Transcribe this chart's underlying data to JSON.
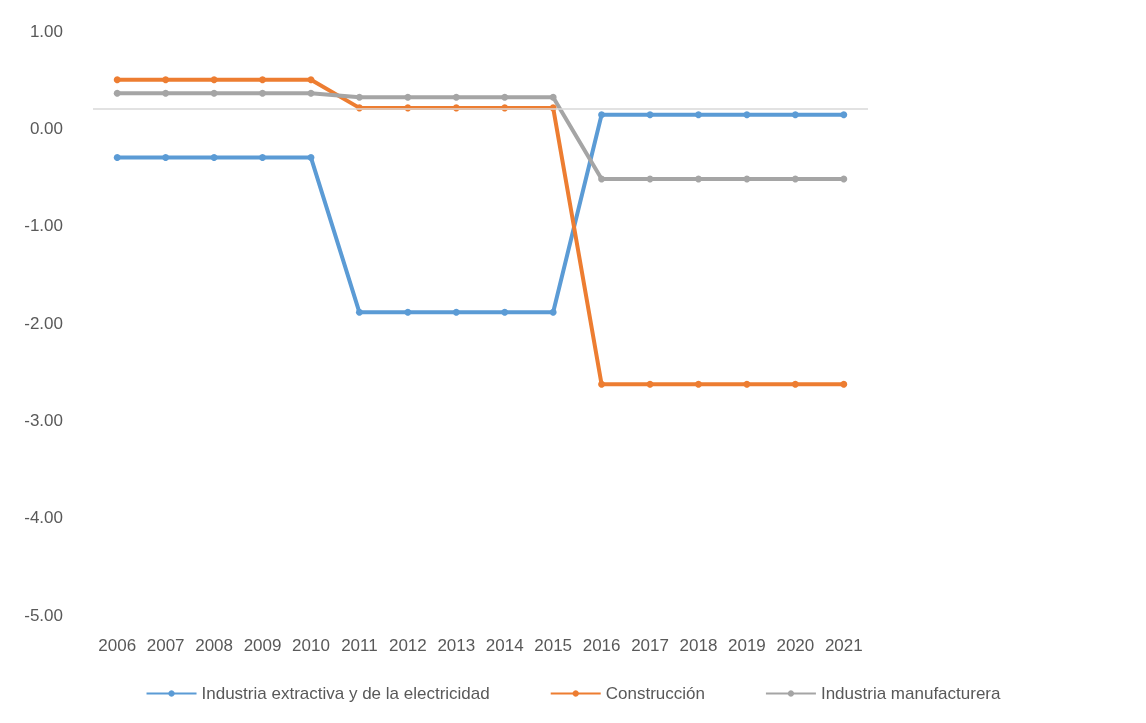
{
  "chart_data": {
    "type": "line",
    "categories": [
      "2006",
      "2007",
      "2008",
      "2009",
      "2010",
      "2011",
      "2012",
      "2013",
      "2014",
      "2015",
      "2016",
      "2017",
      "2018",
      "2019",
      "2020",
      "2021"
    ],
    "series": [
      {
        "name": "Industria extractiva y de la electricidad",
        "color": "#5b9bd5",
        "values": [
          -0.3,
          -0.3,
          -0.3,
          -0.3,
          -0.3,
          -1.89,
          -1.89,
          -1.89,
          -1.89,
          -1.89,
          0.14,
          0.14,
          0.14,
          0.14,
          0.14,
          0.14
        ]
      },
      {
        "name": "Construcción",
        "color": "#ed7d31",
        "values": [
          0.5,
          0.5,
          0.5,
          0.5,
          0.5,
          0.21,
          0.21,
          0.21,
          0.21,
          0.21,
          -2.63,
          -2.63,
          -2.63,
          -2.63,
          -2.63,
          -2.63
        ]
      },
      {
        "name": "Industria manufacturera",
        "color": "#a5a5a5",
        "values": [
          0.36,
          0.36,
          0.36,
          0.36,
          0.36,
          0.32,
          0.32,
          0.32,
          0.32,
          0.32,
          -0.52,
          -0.52,
          -0.52,
          -0.52,
          -0.52,
          -0.52
        ]
      }
    ],
    "ylim": [
      -5,
      1
    ],
    "yticks": [
      {
        "value": -5,
        "label": "-5.00"
      },
      {
        "value": -4,
        "label": "-4.00"
      },
      {
        "value": -3,
        "label": "-3.00"
      },
      {
        "value": -2,
        "label": "-2.00"
      },
      {
        "value": -1,
        "label": "-1.00"
      },
      {
        "value": 0,
        "label": "0.00"
      },
      {
        "value": 1,
        "label": "1.00"
      }
    ],
    "ref_lines": [
      {
        "axis": "y",
        "value": 0.2,
        "color": "#d9d9d9"
      }
    ],
    "grid": false,
    "legend": "bottom",
    "marker": "circle",
    "line_style": "solid"
  }
}
